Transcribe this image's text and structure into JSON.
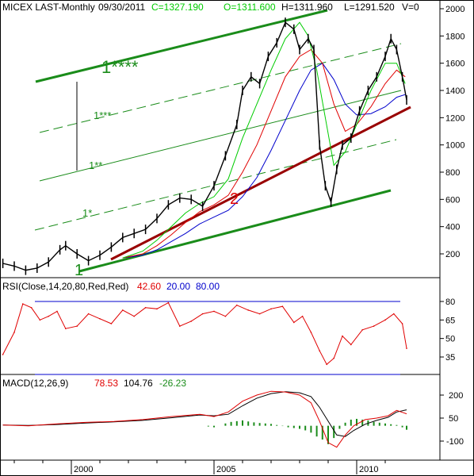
{
  "header": {
    "symbol": "MICEX LAST-Monthly",
    "date": "09/30/2011",
    "close": "C=1327.190",
    "open": "O=1311.600",
    "high": "H=1311.960",
    "low": "L=1291.520",
    "volume": "V=0"
  },
  "rsi_header": {
    "label": "RSI(Close,14,20,80,Red,Red)",
    "value": "42.60",
    "lower": "20.00",
    "upper": "80.00"
  },
  "macd_header": {
    "label": "MACD(12,26,9)",
    "macd": "78.53",
    "signal": "104.76",
    "hist": "-26.23"
  },
  "annotations": {
    "ch0": "1",
    "ch1": "1*",
    "ch2": "1**",
    "ch3": "1***",
    "ch4": "1****",
    "trend": "2"
  },
  "colors": {
    "price": "#000000",
    "ma_fast": "#00cc00",
    "ma_mid": "#e00000",
    "ma_slow": "#0000cc",
    "channel": "#1a8c1a",
    "trend": "#990000",
    "rsi": "#e00000",
    "ref": "#0000cc",
    "macd": "#e00000",
    "signal": "#000000",
    "hist": "#1a8c1a",
    "grid": "#000000"
  },
  "chart_data": [
    {
      "type": "line",
      "title": "MICEX LAST-Monthly",
      "x_ticks": [
        "2000",
        "2005",
        "2010"
      ],
      "y_ticks": [
        200,
        400,
        600,
        800,
        1000,
        1200,
        1400,
        1600,
        1800,
        2000
      ],
      "ylim": [
        60,
        2050
      ],
      "xlim": [
        1997.5,
        2011.8
      ],
      "series": [
        {
          "key": "price",
          "x": [
            1997.6,
            1998.0,
            1998.4,
            1998.8,
            1999.2,
            1999.6,
            1999.8,
            2000.2,
            2000.6,
            2001.0,
            2001.4,
            2001.8,
            2002.2,
            2002.6,
            2003.0,
            2003.4,
            2003.8,
            2004.2,
            2004.6,
            2005.0,
            2005.4,
            2005.8,
            2006.0,
            2006.3,
            2006.6,
            2006.9,
            2007.2,
            2007.5,
            2007.8,
            2008.0,
            2008.3,
            2008.5,
            2008.7,
            2008.9,
            2009.1,
            2009.3,
            2009.5,
            2009.8,
            2010.1,
            2010.4,
            2010.7,
            2011.0,
            2011.2,
            2011.4,
            2011.6,
            2011.75
          ],
          "values": [
            130,
            110,
            80,
            95,
            140,
            230,
            260,
            200,
            150,
            190,
            250,
            320,
            350,
            380,
            460,
            560,
            610,
            600,
            550,
            700,
            920,
            1150,
            1400,
            1500,
            1450,
            1650,
            1750,
            1900,
            1850,
            1700,
            1780,
            1700,
            1000,
            700,
            580,
            820,
            1000,
            1050,
            1250,
            1400,
            1500,
            1650,
            1780,
            1700,
            1500,
            1330
          ]
        },
        {
          "key": "ma_fast",
          "x": [
            2001.8,
            2002.5,
            2003.0,
            2003.5,
            2004.0,
            2004.5,
            2005.0,
            2005.5,
            2006.0,
            2006.5,
            2007.0,
            2007.5,
            2008.0,
            2008.3,
            2008.6,
            2008.9,
            2009.2,
            2009.6,
            2010.0,
            2010.5,
            2011.0,
            2011.4,
            2011.7
          ],
          "values": [
            170,
            220,
            300,
            400,
            500,
            570,
            620,
            750,
            1050,
            1300,
            1550,
            1780,
            1900,
            1800,
            1550,
            1200,
            850,
            950,
            1150,
            1400,
            1600,
            1600,
            1450
          ]
        },
        {
          "key": "ma_mid",
          "x": [
            2001.8,
            2002.5,
            2003.0,
            2003.5,
            2004.0,
            2004.5,
            2005.0,
            2005.5,
            2006.0,
            2006.5,
            2007.0,
            2007.5,
            2008.0,
            2008.4,
            2008.8,
            2009.2,
            2009.6,
            2010.0,
            2010.5,
            2011.0,
            2011.4,
            2011.7
          ],
          "values": [
            170,
            200,
            260,
            340,
            430,
            510,
            560,
            630,
            800,
            1000,
            1250,
            1500,
            1650,
            1700,
            1600,
            1300,
            1100,
            1150,
            1280,
            1450,
            1550,
            1500
          ]
        },
        {
          "key": "ma_slow",
          "x": [
            2001.8,
            2002.5,
            2003.0,
            2003.5,
            2004.0,
            2004.5,
            2005.0,
            2005.5,
            2006.0,
            2006.5,
            2007.0,
            2007.5,
            2008.0,
            2008.4,
            2008.8,
            2009.2,
            2009.6,
            2010.0,
            2010.5,
            2011.0,
            2011.4,
            2011.7
          ],
          "values": [
            170,
            190,
            230,
            290,
            350,
            420,
            470,
            520,
            620,
            760,
            960,
            1180,
            1400,
            1550,
            1600,
            1480,
            1300,
            1220,
            1230,
            1280,
            1350,
            1370
          ]
        }
      ]
    },
    {
      "type": "line",
      "title": "RSI(Close,14,20,80,Red,Red)",
      "y_ticks": [
        35,
        50,
        65,
        80
      ],
      "ylim": [
        25,
        90
      ],
      "reference_lines": [
        20,
        80
      ],
      "series": [
        {
          "key": "rsi",
          "x": [
            1997.6,
            1998.0,
            1998.3,
            1998.6,
            1998.9,
            1999.2,
            1999.5,
            1999.8,
            2000.2,
            2000.6,
            2001.0,
            2001.4,
            2001.8,
            2002.2,
            2002.6,
            2003.0,
            2003.4,
            2003.8,
            2004.2,
            2004.6,
            2005.0,
            2005.4,
            2005.8,
            2006.2,
            2006.6,
            2007.0,
            2007.4,
            2007.8,
            2008.1,
            2008.4,
            2008.7,
            2008.95,
            2009.2,
            2009.5,
            2009.8,
            2010.2,
            2010.6,
            2011.0,
            2011.3,
            2011.6,
            2011.75
          ],
          "values": [
            37,
            55,
            78,
            75,
            65,
            68,
            72,
            58,
            60,
            70,
            66,
            62,
            73,
            68,
            75,
            74,
            79,
            60,
            64,
            70,
            72,
            68,
            77,
            73,
            70,
            74,
            76,
            63,
            68,
            55,
            40,
            29,
            34,
            52,
            45,
            57,
            60,
            65,
            70,
            62,
            42
          ]
        }
      ]
    },
    {
      "type": "line",
      "title": "MACD(12,26,9)",
      "y_ticks": [
        -100,
        50,
        200
      ],
      "ylim": [
        -150,
        260
      ],
      "series": [
        {
          "key": "macd",
          "x": [
            1997.6,
            1998.5,
            1999.5,
            2000.5,
            2001.5,
            2002.5,
            2003.5,
            2004.5,
            2005.0,
            2005.5,
            2006.0,
            2006.5,
            2007.0,
            2007.5,
            2008.0,
            2008.4,
            2008.7,
            2009.0,
            2009.3,
            2009.6,
            2009.9,
            2010.3,
            2010.7,
            2011.1,
            2011.4,
            2011.75
          ],
          "values": [
            5,
            0,
            12,
            22,
            28,
            40,
            60,
            75,
            60,
            90,
            160,
            200,
            225,
            220,
            200,
            150,
            30,
            -110,
            -140,
            -60,
            0,
            40,
            50,
            65,
            100,
            78
          ]
        },
        {
          "key": "signal",
          "x": [
            1997.6,
            1998.5,
            1999.5,
            2000.5,
            2001.5,
            2002.5,
            2003.5,
            2004.5,
            2005.0,
            2005.5,
            2006.0,
            2006.5,
            2007.0,
            2007.5,
            2008.0,
            2008.4,
            2008.7,
            2009.0,
            2009.3,
            2009.6,
            2009.9,
            2010.3,
            2010.7,
            2011.1,
            2011.4,
            2011.75
          ],
          "values": [
            5,
            2,
            8,
            18,
            25,
            35,
            52,
            70,
            65,
            75,
            130,
            180,
            210,
            222,
            215,
            190,
            120,
            30,
            -60,
            -70,
            -30,
            10,
            35,
            55,
            90,
            104
          ]
        },
        {
          "key": "hist",
          "x": [
            2004.8,
            2005.0,
            2005.2,
            2005.4,
            2005.6,
            2005.8,
            2006.0,
            2006.2,
            2006.4,
            2006.6,
            2006.8,
            2007.0,
            2007.2,
            2007.4,
            2007.6,
            2007.8,
            2008.0,
            2008.2,
            2008.4,
            2008.6,
            2008.8,
            2009.0,
            2009.2,
            2009.4,
            2009.6,
            2009.8,
            2010.0,
            2010.2,
            2010.4,
            2010.6,
            2010.8,
            2011.0,
            2011.2,
            2011.4,
            2011.6,
            2011.75
          ],
          "values": [
            -5,
            -10,
            0,
            15,
            25,
            30,
            35,
            28,
            22,
            18,
            15,
            12,
            5,
            -2,
            -10,
            -15,
            -20,
            -30,
            -45,
            -70,
            -90,
            -120,
            -80,
            -20,
            20,
            40,
            45,
            40,
            35,
            25,
            20,
            15,
            10,
            5,
            -10,
            -26
          ]
        }
      ]
    }
  ]
}
